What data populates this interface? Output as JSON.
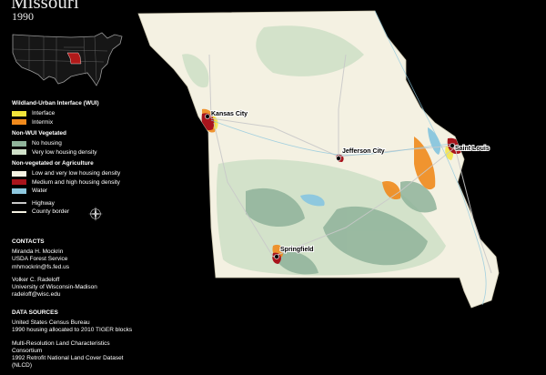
{
  "title": "Missouri",
  "year": "1990",
  "legend": {
    "wui_heading": "Wildland-Urban Interface (WUI)",
    "wui_items": [
      {
        "label": "Interface",
        "color": "#f2e43a"
      },
      {
        "label": "Intermix",
        "color": "#f08a1c"
      }
    ],
    "nonwui_heading": "Non-WUI Vegetated",
    "nonwui_items": [
      {
        "label": "No housing",
        "color": "#8fb39a"
      },
      {
        "label": "Very low housing density",
        "color": "#cfe0c8"
      }
    ],
    "nonveg_heading": "Non-vegetated or Agriculture",
    "nonveg_items": [
      {
        "label": "Low and very low housing density",
        "color": "#f4f1e2"
      },
      {
        "label": "Medium and high housing density",
        "color": "#a8141c"
      },
      {
        "label": "Water",
        "color": "#8ec8de"
      }
    ],
    "line_items": [
      {
        "label": "Highway",
        "color": "#c9c9c9"
      },
      {
        "label": "County border",
        "color": "#f4f1e2"
      }
    ]
  },
  "contacts": {
    "heading": "CONTACTS",
    "people": [
      {
        "name": "Miranda H. Mockrin",
        "org": "USDA Forest Service",
        "email": "mhmockrin@fs.fed.us"
      },
      {
        "name": "Volker C. Radeloff",
        "org": "University of Wisconsin-Madison",
        "email": "radeloff@wisc.edu"
      }
    ]
  },
  "data_sources": {
    "heading": "DATA SOURCES",
    "entries": [
      {
        "line1": "United States Census Bureau",
        "line2": "1990 housing allocated to 2010 TIGER blocks"
      },
      {
        "line1": "Multi-Resolution Land Characteristics Consortium",
        "line2": "1992 Retrofit National Land Cover Dataset (NLCD)"
      }
    ]
  },
  "cities": {
    "kansas_city": "Kansas City",
    "jefferson_city": "Jefferson City",
    "saint_louis": "Saint Louis",
    "springfield": "Springfield"
  },
  "colors": {
    "state_fill": "#f4f1e2",
    "highlight_state": "#b01a1a",
    "inset_land": "#1a1a1a",
    "inset_border": "#9a9a9a"
  }
}
